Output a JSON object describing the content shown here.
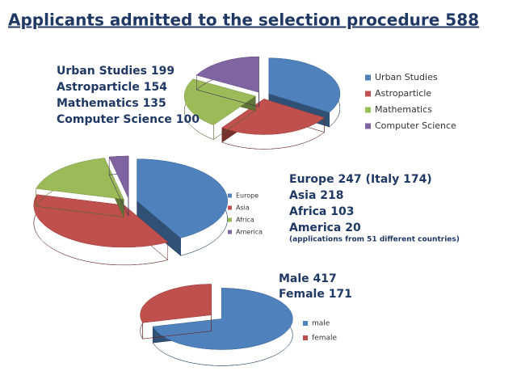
{
  "title": "Applicants admitted to the selection procedure 588",
  "chart_data": [
    {
      "type": "pie",
      "categories": [
        "Urban Studies",
        "Astroparticle",
        "Mathematics",
        "Computer Science"
      ],
      "values": [
        199,
        154,
        135,
        100
      ],
      "colors": [
        "#4f81bd",
        "#c0504d",
        "#9bbb59",
        "#8064a2"
      ],
      "notes": [
        "Urban Studies  199",
        "Astroparticle  154",
        "Mathematics  135",
        "Computer Science  100"
      ]
    },
    {
      "type": "pie",
      "categories": [
        "Europe",
        "Asia",
        "Africa",
        "America"
      ],
      "values": [
        247,
        218,
        103,
        20
      ],
      "colors": [
        "#4f81bd",
        "#c0504d",
        "#9bbb59",
        "#8064a2"
      ],
      "notes": [
        "Europe 247 (Italy 174)",
        "Asia 218",
        "Africa 103",
        "America 20",
        "(applications from 51  different countries)"
      ]
    },
    {
      "type": "pie",
      "categories": [
        "male",
        "female"
      ],
      "values": [
        417,
        171
      ],
      "colors": [
        "#4f81bd",
        "#c0504d"
      ],
      "notes": [
        "Male  417",
        "Female  171"
      ]
    }
  ]
}
